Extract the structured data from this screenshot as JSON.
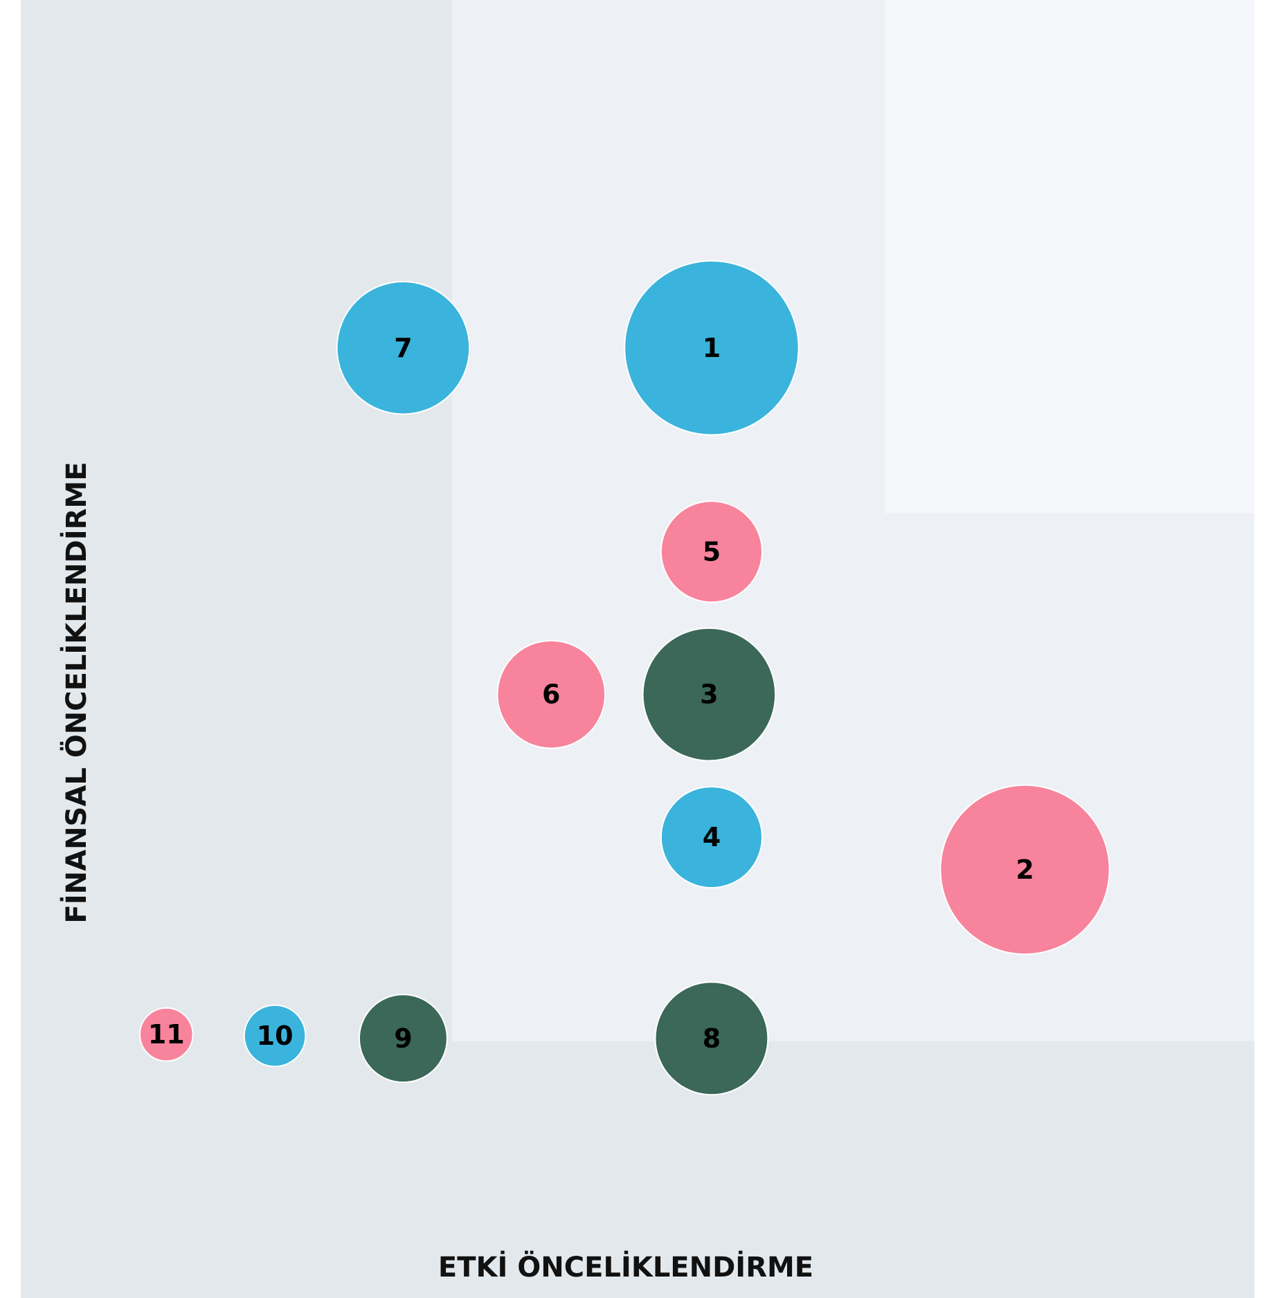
{
  "chart_data": {
    "type": "bubble",
    "x_label": "ETKİ ÖNCELİKLENDİRME",
    "y_label": "FİNANSAL ÖNCELİKLENDİRME",
    "labels": [
      "1",
      "2",
      "3",
      "4",
      "5",
      "6",
      "7",
      "8",
      "9",
      "10",
      "11"
    ],
    "x": [
      56.0,
      81.4,
      55.8,
      56.0,
      56.0,
      43.0,
      31.0,
      56.0,
      31.0,
      20.6,
      11.8
    ],
    "values": [
      73.2,
      33.0,
      46.5,
      35.5,
      57.5,
      46.5,
      73.2,
      20.0,
      20.0,
      20.2,
      20.3
    ],
    "sizes": [
      105,
      102,
      80,
      61,
      61,
      65,
      80,
      68,
      53,
      37,
      32
    ],
    "colors": [
      "#3ab4dc",
      "#f7849c",
      "#3b6858",
      "#3ab4dc",
      "#f7849c",
      "#f7849c",
      "#3ab4dc",
      "#3b6858",
      "#3b6858",
      "#3ab4dc",
      "#f7849c"
    ],
    "xlim": [
      0,
      100
    ],
    "ylim": [
      0,
      100
    ]
  }
}
